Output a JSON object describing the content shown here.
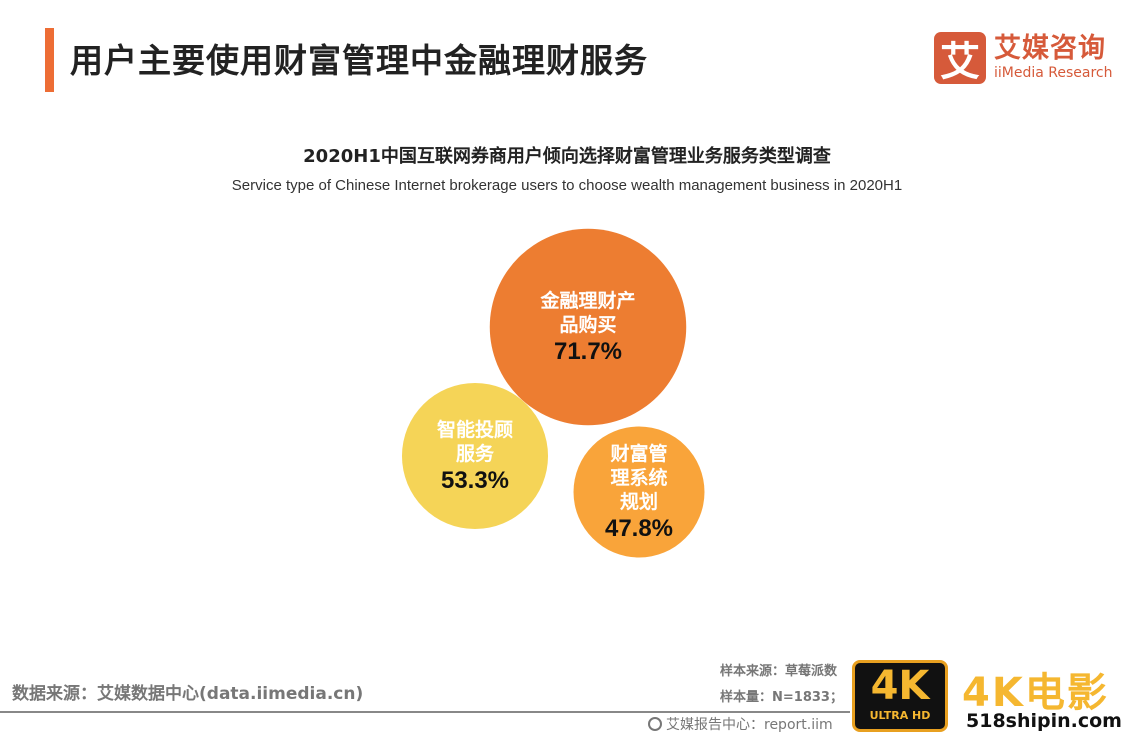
{
  "header": {
    "title": "用户主要使用财富管理中金融理财服务"
  },
  "logo": {
    "mark": "艾",
    "cn": "艾媒咨询",
    "en": "iiMedia Research"
  },
  "chart_data": {
    "type": "bubble",
    "title": "2020H1中国互联网券商用户倾向选择财富管理业务服务类型调查",
    "subtitle": "Service type of Chinese Internet brokerage users to choose wealth management business in 2020H1",
    "points": [
      {
        "label_lines": [
          "金融理财产",
          "品购买"
        ],
        "value": 71.7,
        "value_label": "71.7%",
        "color": "#ED7D31"
      },
      {
        "label_lines": [
          "智能投顾",
          "服务"
        ],
        "value": 53.3,
        "value_label": "53.3%",
        "color": "#F5D457"
      },
      {
        "label_lines": [
          "财富管",
          "理系统",
          "规划"
        ],
        "value": 47.8,
        "value_label": "47.8%",
        "color": "#F9A43A"
      }
    ]
  },
  "footer": {
    "source": "数据来源：艾媒数据中心(data.iimedia.cn)",
    "sample_source": "样本来源：草莓派数",
    "sample_size": "样本量：N=1833；",
    "report": "艾媒报告中心：report.iim"
  },
  "watermark": {
    "badge_big": "4K",
    "badge_small": "ULTRA HD",
    "title": "4K电影",
    "url": "518shipin.com"
  }
}
